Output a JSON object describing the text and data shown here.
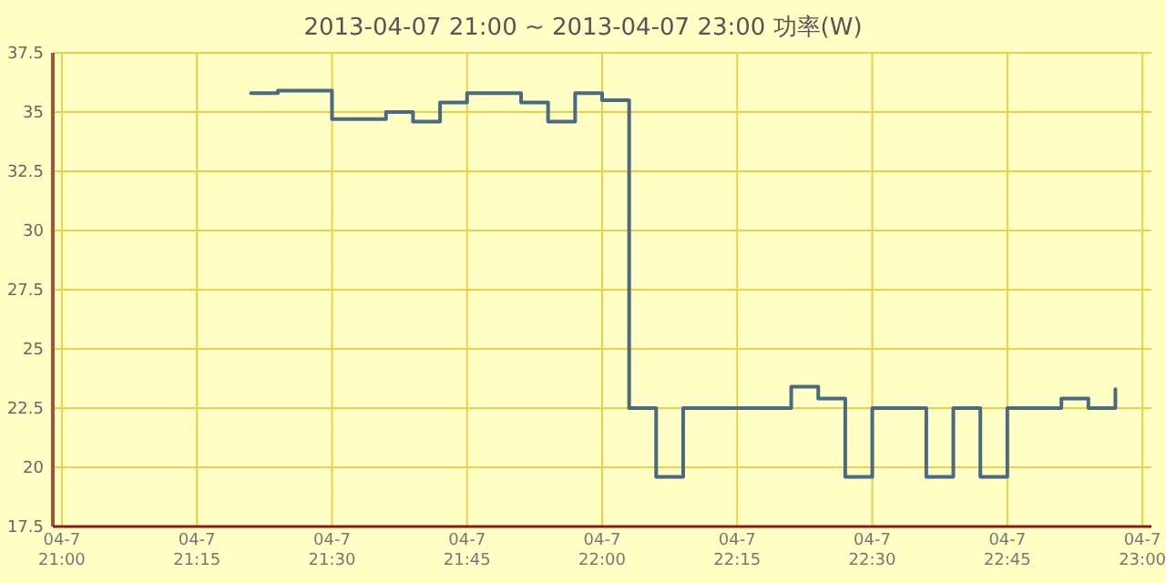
{
  "chart_data": {
    "type": "step",
    "title": "2013-04-07 21:00 ~ 2013-04-07 23:00 功率(W)",
    "x": [
      "2013-04-07T21:21",
      "2013-04-07T21:24",
      "2013-04-07T21:27",
      "2013-04-07T21:30",
      "2013-04-07T21:33",
      "2013-04-07T21:36",
      "2013-04-07T21:39",
      "2013-04-07T21:42",
      "2013-04-07T21:45",
      "2013-04-07T21:48",
      "2013-04-07T21:51",
      "2013-04-07T21:54",
      "2013-04-07T21:57",
      "2013-04-07T22:00",
      "2013-04-07T22:03",
      "2013-04-07T22:06",
      "2013-04-07T22:09",
      "2013-04-07T22:12",
      "2013-04-07T22:15",
      "2013-04-07T22:18",
      "2013-04-07T22:21",
      "2013-04-07T22:24",
      "2013-04-07T22:27",
      "2013-04-07T22:30",
      "2013-04-07T22:33",
      "2013-04-07T22:36",
      "2013-04-07T22:39",
      "2013-04-07T22:42",
      "2013-04-07T22:45",
      "2013-04-07T22:48",
      "2013-04-07T22:51",
      "2013-04-07T22:54",
      "2013-04-07T22:57"
    ],
    "series": [
      {
        "color": "#4a6a80",
        "values": [
          35.8,
          35.9,
          35.9,
          34.7,
          34.7,
          35.0,
          34.6,
          35.4,
          35.8,
          35.8,
          35.4,
          34.6,
          35.8,
          35.5,
          22.5,
          19.6,
          22.5,
          22.5,
          22.5,
          22.5,
          23.4,
          22.9,
          19.6,
          22.5,
          22.5,
          19.6,
          22.5,
          19.6,
          22.5,
          22.5,
          22.9,
          22.5,
          23.3
        ]
      }
    ],
    "xlim": [
      "2013-04-07T20:59",
      "2013-04-07T23:01"
    ],
    "xticks": [
      {
        "value": "2013-04-07T21:00",
        "label": "04-7\n21:00"
      },
      {
        "value": "2013-04-07T21:15",
        "label": "04-7\n21:15"
      },
      {
        "value": "2013-04-07T21:30",
        "label": "04-7\n21:30"
      },
      {
        "value": "2013-04-07T21:45",
        "label": "04-7\n21:45"
      },
      {
        "value": "2013-04-07T22:00",
        "label": "04-7\n22:00"
      },
      {
        "value": "2013-04-07T22:15",
        "label": "04-7\n22:15"
      },
      {
        "value": "2013-04-07T22:30",
        "label": "04-7\n22:30"
      },
      {
        "value": "2013-04-07T22:45",
        "label": "04-7\n22:45"
      },
      {
        "value": "2013-04-07T23:00",
        "label": "04-7\n23:00"
      }
    ],
    "ylim": [
      17.5,
      37.5
    ],
    "yticks": [
      17.5,
      20,
      22.5,
      25,
      27.5,
      30,
      32.5,
      35,
      37.5
    ],
    "grid": true,
    "line_style": "solid"
  }
}
